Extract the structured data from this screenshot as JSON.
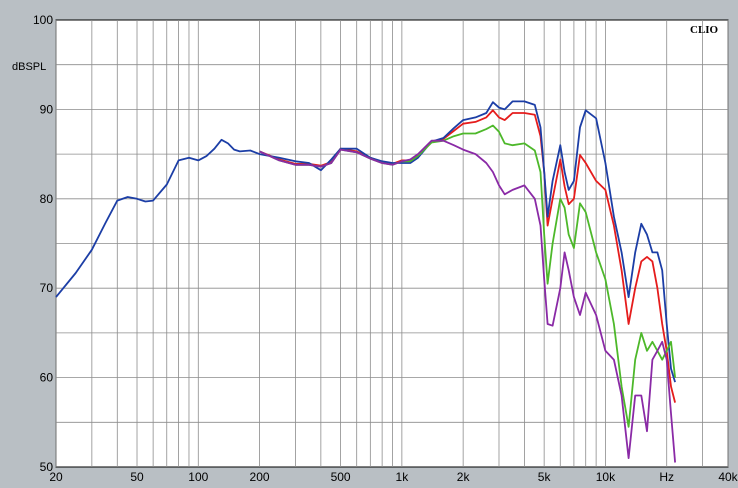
{
  "chart_data": {
    "type": "line",
    "title": "",
    "brand": "CLIO",
    "xlabel": "",
    "ylabel": "dBSPL",
    "x_scale": "log",
    "xlim": [
      20,
      40000
    ],
    "ylim": [
      50,
      100
    ],
    "grid": true,
    "x_ticks": [
      {
        "value": 20,
        "label": "20"
      },
      {
        "value": 50,
        "label": "50"
      },
      {
        "value": 100,
        "label": "100"
      },
      {
        "value": 200,
        "label": "200"
      },
      {
        "value": 500,
        "label": "500"
      },
      {
        "value": 1000,
        "label": "1k"
      },
      {
        "value": 2000,
        "label": "2k"
      },
      {
        "value": 5000,
        "label": "5k"
      },
      {
        "value": 10000,
        "label": "10k"
      },
      {
        "value": 20000,
        "label": "Hz"
      },
      {
        "value": 40000,
        "label": "40k"
      }
    ],
    "y_ticks": [
      {
        "value": 50,
        "label": "50"
      },
      {
        "value": 60,
        "label": "60"
      },
      {
        "value": 70,
        "label": "70"
      },
      {
        "value": 80,
        "label": "80"
      },
      {
        "value": 90,
        "label": "90"
      },
      {
        "value": 100,
        "label": "100"
      }
    ],
    "series": [
      {
        "color": "#e51c1c",
        "x": [
          200,
          250,
          300,
          350,
          400,
          450,
          500,
          600,
          700,
          800,
          900,
          1000,
          1100,
          1200,
          1400,
          1600,
          1800,
          2000,
          2300,
          2600,
          2800,
          3000,
          3200,
          3500,
          4000,
          4500,
          4800,
          5000,
          5200,
          5500,
          6000,
          6300,
          6600,
          7000,
          7500,
          8000,
          9000,
          10000,
          11000,
          12000,
          13000,
          14000,
          15000,
          16000,
          17000,
          18000,
          19000,
          20000,
          21000,
          22000
        ],
        "y": [
          85.3,
          84.4,
          83.9,
          83.9,
          83.7,
          84.1,
          85.6,
          85.3,
          84.6,
          84.1,
          83.9,
          84.3,
          84.3,
          84.9,
          86.4,
          86.7,
          87.6,
          88.4,
          88.6,
          89.1,
          89.9,
          89.1,
          88.8,
          89.6,
          89.6,
          89.4,
          87.0,
          83.0,
          77.0,
          80.0,
          84.4,
          81.4,
          79.4,
          80.0,
          84.9,
          84.0,
          82.0,
          81.0,
          77.0,
          72.0,
          66.0,
          70.0,
          73.0,
          73.5,
          73.0,
          70.0,
          66.0,
          63.0,
          59.0,
          57.2
        ]
      },
      {
        "color": "#1c3ea6",
        "x": [
          20,
          25,
          30,
          35,
          40,
          45,
          50,
          55,
          60,
          70,
          80,
          90,
          100,
          110,
          120,
          130,
          140,
          150,
          160,
          180,
          200,
          250,
          300,
          350,
          400,
          450,
          500,
          600,
          700,
          800,
          900,
          1000,
          1100,
          1200,
          1400,
          1600,
          1800,
          2000,
          2300,
          2600,
          2800,
          3000,
          3200,
          3500,
          4000,
          4500,
          4800,
          5000,
          5200,
          5500,
          6000,
          6300,
          6600,
          7000,
          7500,
          8000,
          9000,
          10000,
          11000,
          12000,
          13000,
          14000,
          15000,
          16000,
          17000,
          18000,
          19000,
          20000,
          21000,
          22000
        ],
        "y": [
          69.0,
          71.7,
          74.3,
          77.3,
          79.8,
          80.2,
          80.0,
          79.7,
          79.8,
          81.6,
          84.3,
          84.6,
          84.3,
          84.8,
          85.6,
          86.6,
          86.2,
          85.5,
          85.3,
          85.4,
          85.0,
          84.6,
          84.2,
          84.0,
          83.2,
          84.4,
          85.6,
          85.6,
          84.6,
          84.2,
          84.0,
          84.0,
          84.0,
          84.6,
          86.4,
          86.8,
          87.9,
          88.8,
          89.1,
          89.6,
          90.8,
          90.2,
          90.0,
          90.9,
          90.9,
          90.5,
          88.0,
          83.0,
          78.0,
          82.0,
          86.0,
          83.0,
          81.0,
          82.0,
          88.0,
          89.9,
          89.0,
          84.0,
          78.0,
          74.0,
          69.0,
          74.0,
          77.2,
          76.0,
          74.0,
          74.0,
          72.0,
          66.0,
          61.0,
          59.5
        ]
      },
      {
        "color": "#4db82a",
        "x": [
          200,
          250,
          300,
          350,
          400,
          450,
          500,
          600,
          700,
          800,
          900,
          1000,
          1100,
          1200,
          1400,
          1600,
          1800,
          2000,
          2300,
          2600,
          2800,
          3000,
          3200,
          3500,
          4000,
          4500,
          4800,
          5000,
          5200,
          5500,
          6000,
          6300,
          6600,
          7000,
          7500,
          8000,
          9000,
          10000,
          11000,
          12000,
          13000,
          14000,
          15000,
          16000,
          17000,
          18000,
          19000,
          20000,
          21000,
          22000
        ],
        "y": [
          85.3,
          84.3,
          83.8,
          83.8,
          83.6,
          84.0,
          85.5,
          85.2,
          84.5,
          84.0,
          83.8,
          84.2,
          84.2,
          84.8,
          86.3,
          86.5,
          87.0,
          87.3,
          87.3,
          87.8,
          88.2,
          87.5,
          86.2,
          86.0,
          86.2,
          85.4,
          83.0,
          76.0,
          70.5,
          75.0,
          80.0,
          79.0,
          76.0,
          74.5,
          79.5,
          78.5,
          74.0,
          71.0,
          66.0,
          59.0,
          54.5,
          62.0,
          65.0,
          63.0,
          64.0,
          63.0,
          62.0,
          63.0,
          64.0,
          60.0
        ]
      },
      {
        "color": "#8a2aa6",
        "x": [
          200,
          250,
          300,
          350,
          400,
          450,
          500,
          600,
          700,
          800,
          900,
          1000,
          1100,
          1200,
          1400,
          1600,
          1800,
          2000,
          2300,
          2600,
          2800,
          3000,
          3200,
          3500,
          4000,
          4500,
          4800,
          5000,
          5200,
          5500,
          6000,
          6300,
          6600,
          7000,
          7500,
          8000,
          9000,
          10000,
          11000,
          12000,
          13000,
          14000,
          15000,
          16000,
          17000,
          18000,
          19000,
          20000,
          21000,
          22000
        ],
        "y": [
          85.3,
          84.3,
          83.8,
          83.8,
          83.6,
          84.0,
          85.5,
          85.2,
          84.5,
          84.0,
          83.8,
          84.2,
          84.4,
          85.0,
          86.5,
          86.5,
          86.0,
          85.5,
          85.0,
          84.0,
          83.0,
          81.5,
          80.5,
          81.0,
          81.5,
          80.0,
          77.0,
          71.0,
          66.0,
          65.8,
          70.0,
          74.0,
          72.0,
          69.0,
          67.0,
          69.5,
          67.0,
          63.0,
          62.0,
          58.0,
          51.0,
          58.0,
          58.0,
          54.0,
          62.0,
          63.0,
          64.0,
          62.0,
          56.0,
          50.5
        ]
      }
    ]
  }
}
